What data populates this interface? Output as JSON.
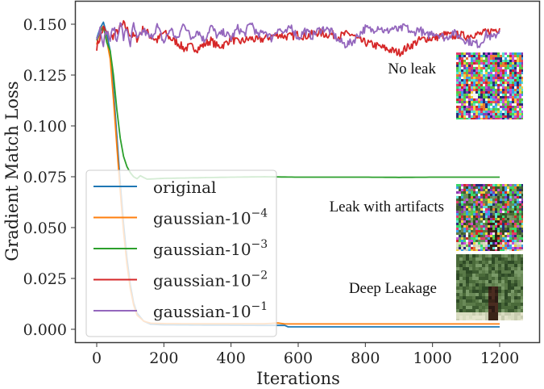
{
  "chart_data": {
    "type": "line",
    "title": "",
    "xlabel": "Iterations",
    "ylabel": "Gradient Match Loss",
    "xlim": [
      -80,
      1265
    ],
    "ylim": [
      -0.0053,
      0.1612
    ],
    "grid": false,
    "legend_position": "lower left",
    "x_ticks": [
      0,
      200,
      400,
      600,
      800,
      1000,
      1200
    ],
    "x_tick_labels": [
      "0",
      "200",
      "400",
      "600",
      "800",
      "1000",
      "1200"
    ],
    "y_ticks": [
      0.0,
      0.025,
      0.05,
      0.075,
      0.1,
      0.125,
      0.15
    ],
    "y_tick_labels": [
      "0.000",
      "0.025",
      "0.050",
      "0.075",
      "0.100",
      "0.125",
      "0.150"
    ],
    "series": [
      {
        "name": "original",
        "label_base": "original",
        "label_exp": "",
        "color": "#1f77b4",
        "points": [
          [
            0,
            0.143
          ],
          [
            10,
            0.148
          ],
          [
            20,
            0.151
          ],
          [
            30,
            0.145
          ],
          [
            40,
            0.137
          ],
          [
            50,
            0.118
          ],
          [
            60,
            0.095
          ],
          [
            70,
            0.072
          ],
          [
            80,
            0.052
          ],
          [
            90,
            0.035
          ],
          [
            100,
            0.022
          ],
          [
            110,
            0.013
          ],
          [
            120,
            0.008
          ],
          [
            140,
            0.004
          ],
          [
            160,
            0.0025
          ],
          [
            200,
            0.0022
          ],
          [
            300,
            0.0021
          ],
          [
            400,
            0.002
          ],
          [
            500,
            0.0019
          ],
          [
            560,
            0.0019
          ],
          [
            570,
            0.0012
          ],
          [
            700,
            0.0012
          ],
          [
            900,
            0.0012
          ],
          [
            1200,
            0.0012
          ]
        ]
      },
      {
        "name": "gaussian-10^-4",
        "label_base": "gaussian-10",
        "label_exp": "−4",
        "color": "#ff7f0e",
        "points": [
          [
            0,
            0.14
          ],
          [
            10,
            0.147
          ],
          [
            20,
            0.149
          ],
          [
            30,
            0.142
          ],
          [
            40,
            0.133
          ],
          [
            50,
            0.113
          ],
          [
            60,
            0.09
          ],
          [
            70,
            0.068
          ],
          [
            80,
            0.048
          ],
          [
            90,
            0.032
          ],
          [
            100,
            0.02
          ],
          [
            110,
            0.012
          ],
          [
            120,
            0.007
          ],
          [
            140,
            0.004
          ],
          [
            160,
            0.003
          ],
          [
            200,
            0.0028
          ],
          [
            300,
            0.0027
          ],
          [
            400,
            0.0027
          ],
          [
            500,
            0.0027
          ],
          [
            540,
            0.0031
          ],
          [
            560,
            0.0026
          ],
          [
            700,
            0.0026
          ],
          [
            900,
            0.0026
          ],
          [
            1200,
            0.0026
          ]
        ]
      },
      {
        "name": "gaussian-10^-3",
        "label_base": "gaussian-10",
        "label_exp": "−3",
        "color": "#2ca02c",
        "points": [
          [
            0,
            0.142
          ],
          [
            10,
            0.146
          ],
          [
            20,
            0.149
          ],
          [
            30,
            0.141
          ],
          [
            40,
            0.137
          ],
          [
            50,
            0.125
          ],
          [
            60,
            0.108
          ],
          [
            70,
            0.094
          ],
          [
            80,
            0.085
          ],
          [
            90,
            0.08
          ],
          [
            100,
            0.077
          ],
          [
            110,
            0.075
          ],
          [
            120,
            0.074
          ],
          [
            130,
            0.0755
          ],
          [
            150,
            0.0738
          ],
          [
            200,
            0.0742
          ],
          [
            300,
            0.0745
          ],
          [
            400,
            0.0748
          ],
          [
            500,
            0.075
          ],
          [
            600,
            0.0748
          ],
          [
            700,
            0.0748
          ],
          [
            800,
            0.0748
          ],
          [
            900,
            0.0747
          ],
          [
            1000,
            0.0748
          ],
          [
            1100,
            0.0748
          ],
          [
            1200,
            0.0748
          ]
        ]
      },
      {
        "name": "gaussian-10^-2",
        "label_base": "gaussian-10",
        "label_exp": "−2",
        "color": "#d62728",
        "points": [
          [
            0,
            0.139
          ],
          [
            20,
            0.148
          ],
          [
            40,
            0.143
          ],
          [
            60,
            0.146
          ],
          [
            80,
            0.15
          ],
          [
            100,
            0.145
          ],
          [
            120,
            0.143
          ],
          [
            140,
            0.148
          ],
          [
            160,
            0.144
          ],
          [
            180,
            0.142
          ],
          [
            200,
            0.146
          ],
          [
            220,
            0.143
          ],
          [
            240,
            0.141
          ],
          [
            260,
            0.138
          ],
          [
            280,
            0.139
          ],
          [
            300,
            0.138
          ],
          [
            320,
            0.14
          ],
          [
            340,
            0.142
          ],
          [
            360,
            0.139
          ],
          [
            380,
            0.14
          ],
          [
            400,
            0.143
          ],
          [
            420,
            0.141
          ],
          [
            440,
            0.142
          ],
          [
            460,
            0.143
          ],
          [
            480,
            0.142
          ],
          [
            500,
            0.143
          ],
          [
            520,
            0.144
          ],
          [
            540,
            0.145
          ],
          [
            560,
            0.144
          ],
          [
            580,
            0.144
          ],
          [
            600,
            0.145
          ],
          [
            620,
            0.144
          ],
          [
            640,
            0.145
          ],
          [
            660,
            0.146
          ],
          [
            680,
            0.145
          ],
          [
            700,
            0.145
          ],
          [
            720,
            0.144
          ],
          [
            740,
            0.145
          ],
          [
            760,
            0.145
          ],
          [
            780,
            0.142
          ],
          [
            800,
            0.141
          ],
          [
            820,
            0.14
          ],
          [
            840,
            0.139
          ],
          [
            860,
            0.138
          ],
          [
            880,
            0.137
          ],
          [
            900,
            0.136
          ],
          [
            920,
            0.138
          ],
          [
            940,
            0.14
          ],
          [
            960,
            0.142
          ],
          [
            980,
            0.143
          ],
          [
            1000,
            0.143
          ],
          [
            1020,
            0.144
          ],
          [
            1040,
            0.145
          ],
          [
            1060,
            0.144
          ],
          [
            1080,
            0.145
          ],
          [
            1100,
            0.144
          ],
          [
            1120,
            0.145
          ],
          [
            1140,
            0.145
          ],
          [
            1160,
            0.146
          ],
          [
            1180,
            0.147
          ],
          [
            1200,
            0.148
          ]
        ]
      },
      {
        "name": "gaussian-10^-1",
        "label_base": "gaussian-10",
        "label_exp": "−1",
        "color": "#9467bd",
        "points": [
          [
            0,
            0.143
          ],
          [
            10,
            0.148
          ],
          [
            20,
            0.141
          ],
          [
            30,
            0.147
          ],
          [
            40,
            0.142
          ],
          [
            50,
            0.149
          ],
          [
            60,
            0.141
          ],
          [
            70,
            0.152
          ],
          [
            80,
            0.143
          ],
          [
            90,
            0.148
          ],
          [
            100,
            0.14
          ],
          [
            110,
            0.15
          ],
          [
            120,
            0.142
          ],
          [
            140,
            0.147
          ],
          [
            160,
            0.143
          ],
          [
            180,
            0.149
          ],
          [
            200,
            0.141
          ],
          [
            220,
            0.148
          ],
          [
            240,
            0.142
          ],
          [
            260,
            0.151
          ],
          [
            280,
            0.143
          ],
          [
            300,
            0.147
          ],
          [
            320,
            0.142
          ],
          [
            340,
            0.149
          ],
          [
            360,
            0.144
          ],
          [
            380,
            0.146
          ],
          [
            400,
            0.143
          ],
          [
            420,
            0.148
          ],
          [
            440,
            0.145
          ],
          [
            460,
            0.151
          ],
          [
            480,
            0.144
          ],
          [
            500,
            0.147
          ],
          [
            520,
            0.143
          ],
          [
            540,
            0.148
          ],
          [
            560,
            0.145
          ],
          [
            580,
            0.149
          ],
          [
            600,
            0.143
          ],
          [
            620,
            0.147
          ],
          [
            640,
            0.144
          ],
          [
            660,
            0.147
          ],
          [
            680,
            0.148
          ],
          [
            700,
            0.146
          ],
          [
            720,
            0.142
          ],
          [
            740,
            0.14
          ],
          [
            760,
            0.141
          ],
          [
            780,
            0.145
          ],
          [
            800,
            0.148
          ],
          [
            820,
            0.147
          ],
          [
            840,
            0.149
          ],
          [
            860,
            0.146
          ],
          [
            880,
            0.148
          ],
          [
            900,
            0.147
          ],
          [
            920,
            0.149
          ],
          [
            940,
            0.145
          ],
          [
            960,
            0.148
          ],
          [
            980,
            0.144
          ],
          [
            1000,
            0.146
          ],
          [
            1020,
            0.145
          ],
          [
            1040,
            0.143
          ],
          [
            1060,
            0.146
          ],
          [
            1080,
            0.144
          ],
          [
            1100,
            0.142
          ],
          [
            1120,
            0.141
          ],
          [
            1140,
            0.14
          ],
          [
            1160,
            0.145
          ],
          [
            1180,
            0.143
          ],
          [
            1200,
            0.147
          ]
        ]
      }
    ],
    "annotations": [
      {
        "text": "No leak",
        "attached_to": "gaussian-10^-2 / gaussian-10^-1",
        "image": "random-noise-thumbnail"
      },
      {
        "text": "Leak with artifacts",
        "attached_to": "gaussian-10^-3",
        "image": "noisy-tree-thumbnail"
      },
      {
        "text": "Deep Leakage",
        "attached_to": "original / gaussian-10^-4",
        "image": "tree-thumbnail"
      }
    ]
  },
  "legend": {
    "items": [
      {
        "label_base": "original",
        "label_exp": "",
        "color": "#1f77b4"
      },
      {
        "label_base": "gaussian-10",
        "label_exp": "−4",
        "color": "#ff7f0e"
      },
      {
        "label_base": "gaussian-10",
        "label_exp": "−3",
        "color": "#2ca02c"
      },
      {
        "label_base": "gaussian-10",
        "label_exp": "−2",
        "color": "#d62728"
      },
      {
        "label_base": "gaussian-10",
        "label_exp": "−1",
        "color": "#9467bd"
      }
    ]
  },
  "annotations": {
    "no_leak": "No leak",
    "leak_with_artifacts": "Leak with artifacts",
    "deep_leakage": "Deep Leakage"
  },
  "axes": {
    "xlabel": "Iterations",
    "ylabel": "Gradient Match Loss"
  }
}
